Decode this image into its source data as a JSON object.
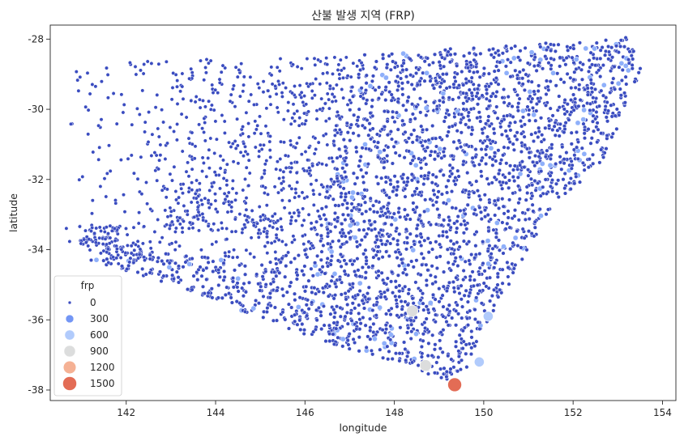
{
  "chart_data": {
    "type": "scatter",
    "title": "산불 발생 지역 (FRP)",
    "xlabel": "longitude",
    "ylabel": "latitude",
    "xlim": [
      140.3,
      154.3
    ],
    "ylim": [
      -38.3,
      -27.6
    ],
    "xticks": [
      142,
      144,
      146,
      148,
      150,
      152,
      154
    ],
    "yticks": [
      -28,
      -30,
      -32,
      -34,
      -36,
      -38
    ],
    "xtick_labels": [
      "142",
      "144",
      "146",
      "148",
      "150",
      "152",
      "154"
    ],
    "ytick_labels": [
      "-28",
      "-30",
      "-32",
      "-34",
      "-36",
      "-38"
    ],
    "grid": false,
    "point_color_base": "#3a4cc0",
    "point_edge_color": "#ffffff",
    "dense_region": [
      [
        147.3,
        -28.4
      ],
      [
        153.3,
        -27.95
      ],
      [
        153.55,
        -28.8
      ],
      [
        153.0,
        -30.5
      ],
      [
        152.6,
        -31.6
      ],
      [
        151.5,
        -32.8
      ],
      [
        150.9,
        -34.3
      ],
      [
        150.2,
        -35.8
      ],
      [
        149.8,
        -36.8
      ],
      [
        149.5,
        -37.8
      ],
      [
        148.5,
        -37.5
      ],
      [
        145.5,
        -36.2
      ],
      [
        143.5,
        -35.2
      ],
      [
        142.0,
        -34.6
      ],
      [
        141.2,
        -34.3
      ],
      [
        142.5,
        -34.0
      ],
      [
        144.8,
        -34.4
      ],
      [
        146.0,
        -34.0
      ],
      [
        146.3,
        -33.0
      ],
      [
        146.7,
        -31.4
      ],
      [
        147.0,
        -30.0
      ]
    ],
    "sparse_region": [
      [
        140.8,
        -28.6
      ],
      [
        147.3,
        -28.5
      ],
      [
        146.5,
        -34.2
      ],
      [
        140.6,
        -34.4
      ]
    ],
    "notable_points": [
      {
        "x": 149.35,
        "y": -37.85,
        "frp": 1500
      },
      {
        "x": 148.4,
        "y": -35.75,
        "frp": 900
      },
      {
        "x": 150.1,
        "y": -35.9,
        "frp": 600
      },
      {
        "x": 149.9,
        "y": -37.2,
        "frp": 600
      },
      {
        "x": 148.7,
        "y": -37.3,
        "frp": 900
      }
    ],
    "legend": {
      "title": "frp",
      "position": "lower-left",
      "entries": [
        {
          "label": "0",
          "color": "#3b4cc0",
          "size": 0
        },
        {
          "label": "300",
          "color": "#7396f5",
          "size": 300
        },
        {
          "label": "600",
          "color": "#b1cbfc",
          "size": 600
        },
        {
          "label": "900",
          "color": "#dcdddd",
          "size": 900
        },
        {
          "label": "1200",
          "color": "#f5b194",
          "size": 1200
        },
        {
          "label": "1500",
          "color": "#e36c55",
          "size": 1500
        }
      ]
    }
  }
}
